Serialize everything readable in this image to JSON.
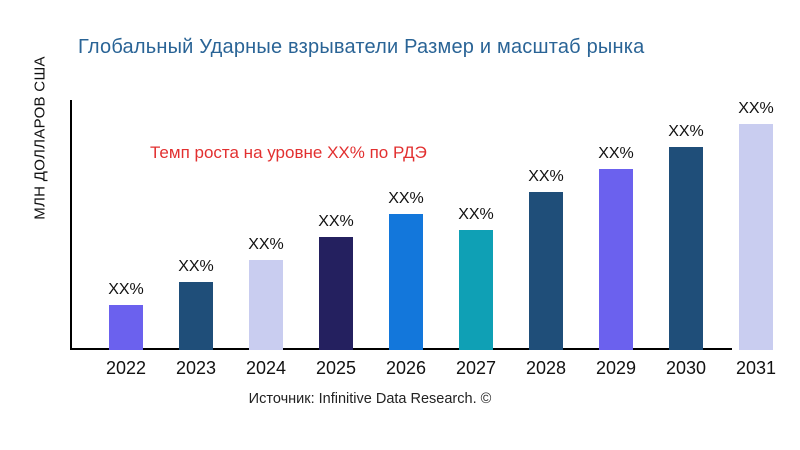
{
  "page": {
    "title": "Глобальный Ударные взрыватели Размер и масштаб рынка",
    "title_color": "#2A6496",
    "y_axis_label": "МЛН ДОЛЛАРОВ США",
    "growth_note": "Темп роста на уровне XX% по РДЭ",
    "growth_note_color": "#E23030",
    "source": "Источник: Infinitive Data Research. ©"
  },
  "chart_data": {
    "type": "bar",
    "title": "Глобальный Ударные взрыватели Размер и масштаб рынка",
    "xlabel": "",
    "ylabel": "МЛН ДОЛЛАРОВ США",
    "categories": [
      "2022",
      "2023",
      "2024",
      "2025",
      "2026",
      "2027",
      "2028",
      "2029",
      "2030",
      "2031"
    ],
    "values": [
      20,
      30,
      40,
      50,
      60,
      53,
      70,
      80,
      90,
      100
    ],
    "value_labels": [
      "XX%",
      "XX%",
      "XX%",
      "XX%",
      "XX%",
      "XX%",
      "XX%",
      "XX%",
      "XX%",
      "XX%"
    ],
    "bar_colors": [
      "#6B61EE",
      "#1F4E79",
      "#C9CDF0",
      "#24205F",
      "#1377DB",
      "#0FA0B5",
      "#1F4E79",
      "#6B61EE",
      "#1F4E79",
      "#C9CDF0"
    ],
    "annotation": "Темп роста на уровне XX% по РДЭ",
    "axis_color": "#000000",
    "grid": false,
    "legend": false,
    "ylim": [
      0,
      110
    ]
  }
}
